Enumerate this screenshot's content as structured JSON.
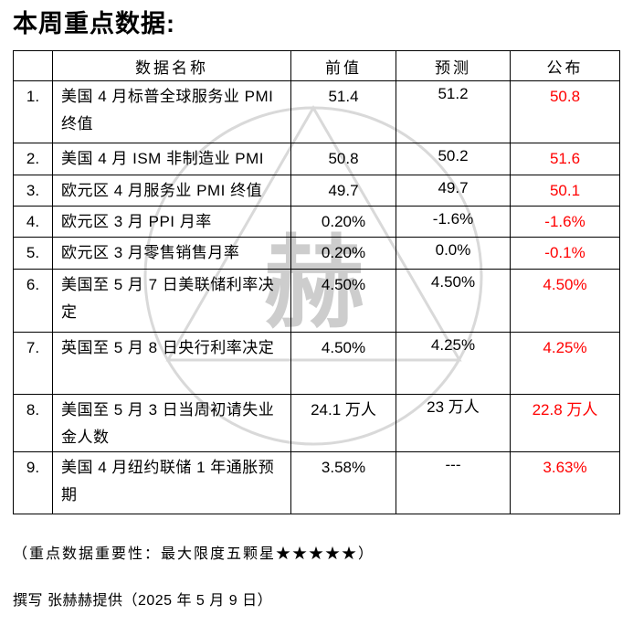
{
  "title": "本周重点数据:",
  "watermark": {
    "character": "赫"
  },
  "colors": {
    "published_value": "#ff0000",
    "table_border": "#000000",
    "watermark_gray": "#d9d9d9",
    "watermark_glyph": "#cdcdcd",
    "text": "#000000"
  },
  "table": {
    "headers": [
      "",
      "数据名称",
      "前值",
      "预测",
      "公布"
    ],
    "rows": [
      {
        "no": "1.",
        "name": "美国 4 月标普全球服务业 PMI 终值",
        "prev": "51.4",
        "forecast": "51.2",
        "published": "50.8"
      },
      {
        "no": "2.",
        "name": "美国 4 月 ISM 非制造业 PMI",
        "prev": "50.8",
        "forecast": "50.2",
        "published": "51.6"
      },
      {
        "no": "3.",
        "name": "欧元区 4 月服务业 PMI 终值",
        "prev": "49.7",
        "forecast": "49.7",
        "published": "50.1"
      },
      {
        "no": "4.",
        "name": "欧元区 3 月 PPI 月率",
        "prev": "0.20%",
        "forecast": "-1.6%",
        "published": "-1.6%"
      },
      {
        "no": "5.",
        "name": "欧元区 3 月零售销售月率",
        "prev": "0.20%",
        "forecast": "0.0%",
        "published": "-0.1%"
      },
      {
        "no": "6.",
        "name": "美国至 5 月 7 日美联储利率决定",
        "prev": "4.50%",
        "forecast": "4.50%",
        "published": "4.50%"
      },
      {
        "no": "7.",
        "name": "英国至 5 月 8 日央行利率决定",
        "prev": "4.50%",
        "forecast": "4.25%",
        "published": "4.25%"
      },
      {
        "no": "8.",
        "name": "美国至 5 月 3 日当周初请失业金人数",
        "prev": "24.1 万人",
        "forecast": "23 万人",
        "published": "22.8 万人"
      },
      {
        "no": "9.",
        "name": "美国 4 月纽约联储 1 年通胀预期",
        "prev": "3.58%",
        "forecast": "---",
        "published": "3.63%"
      }
    ]
  },
  "footnote": "（重点数据重要性：最大限度五颗星★★★★★）",
  "byline": "撰写 张赫赫提供（2025 年 5 月 9 日）"
}
